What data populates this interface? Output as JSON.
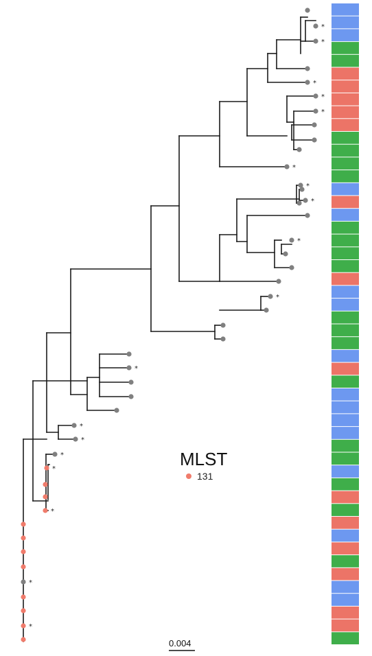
{
  "legend": {
    "title": "MLST",
    "items": [
      {
        "label": "131",
        "color": "#f07c6c"
      }
    ]
  },
  "scale_bar": {
    "label": "0.004"
  },
  "colors": {
    "branch": "#1a1a1a",
    "tip_default": "#808080",
    "tip_highlight": "#f07c6c",
    "strip_blue": "#6d98f0",
    "strip_red": "#ec7467",
    "strip_green": "#3fae4a"
  },
  "annotation_marker": "*",
  "color_strip": [
    "blue",
    "blue",
    "blue",
    "green",
    "green",
    "red",
    "red",
    "red",
    "red",
    "red",
    "green",
    "green",
    "green",
    "green",
    "blue",
    "red",
    "blue",
    "green",
    "green",
    "green",
    "green",
    "red",
    "blue",
    "blue",
    "green",
    "green",
    "green",
    "blue",
    "red",
    "green",
    "blue",
    "blue",
    "blue",
    "blue",
    "green",
    "green",
    "blue",
    "green",
    "red",
    "green",
    "red",
    "blue",
    "red",
    "green",
    "red",
    "blue",
    "blue",
    "red",
    "red",
    "green"
  ]
}
